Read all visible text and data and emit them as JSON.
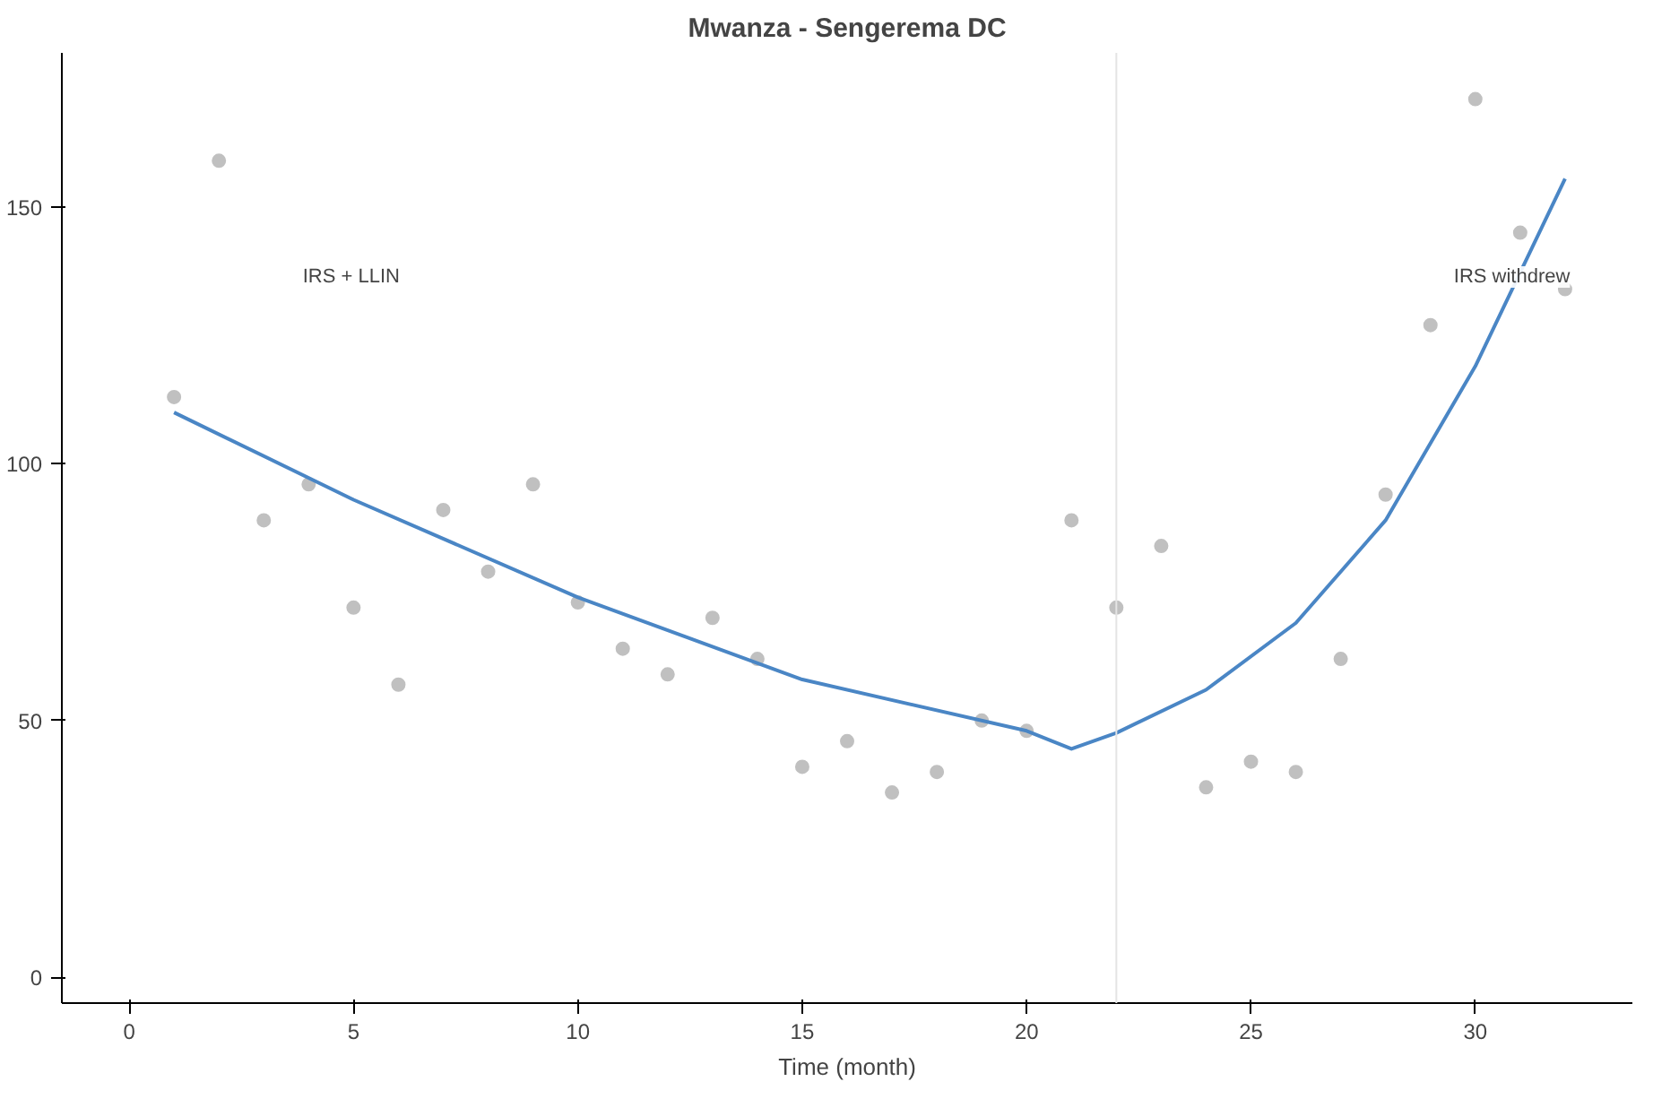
{
  "chart_data": {
    "type": "scatter",
    "title": "Mwanza - Sengerema DC",
    "xlabel": "Time (month)",
    "xlim": [
      -1.5,
      33.5
    ],
    "ylim": [
      -5,
      180
    ],
    "xticks": [
      0,
      5,
      10,
      15,
      20,
      25,
      30
    ],
    "yticks": [
      0,
      50,
      100,
      150
    ],
    "grid": false,
    "series": [
      {
        "color": "#c0c0c0",
        "x": [
          1,
          2,
          3,
          4,
          5,
          6,
          7,
          8,
          9,
          10,
          11,
          12,
          13,
          14,
          15,
          16,
          17,
          18,
          19,
          20,
          21,
          22,
          23,
          24,
          25,
          26,
          27,
          28,
          29,
          30,
          31,
          32
        ],
        "values": [
          113,
          159,
          89,
          96,
          72,
          57,
          91,
          79,
          96,
          73,
          64,
          59,
          70,
          62,
          41,
          46,
          36,
          40,
          50,
          48,
          89,
          72,
          84,
          37,
          42,
          40,
          62,
          94,
          127,
          171,
          145,
          134
        ]
      },
      {
        "type": "line",
        "color": "#4a86c5",
        "x": [
          1,
          5,
          10,
          15,
          20,
          21,
          22,
          24,
          26,
          28,
          30,
          32
        ],
        "values": [
          110,
          93,
          74,
          58,
          48,
          44.5,
          47.6,
          56,
          69,
          89,
          119,
          155.5
        ]
      }
    ],
    "ref_lines": [
      {
        "axis": "x",
        "value": 22,
        "color": "#e4e4e4"
      }
    ],
    "annotations": [
      "IRS + LLIN",
      "IRS withdrew"
    ]
  }
}
